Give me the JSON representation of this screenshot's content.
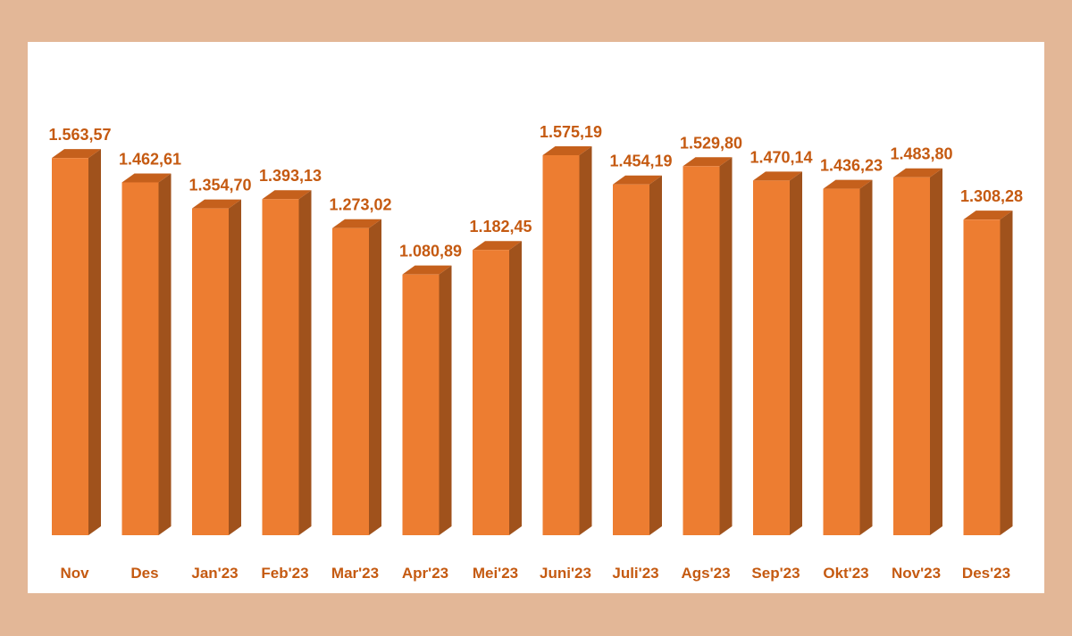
{
  "chart_data": {
    "type": "bar",
    "categories": [
      "Nov",
      "Des",
      "Jan'23",
      "Feb'23",
      "Mar'23",
      "Apr'23",
      "Mei'23",
      "Juni'23",
      "Juli'23",
      "Ags'23",
      "Sep'23",
      "Okt'23",
      "Nov'23",
      "Des'23"
    ],
    "series": [
      {
        "values": [
          1563.57,
          1462.61,
          1354.7,
          1393.13,
          1273.02,
          1080.89,
          1182.45,
          1575.19,
          1454.19,
          1529.8,
          1470.14,
          1436.23,
          1483.8,
          1308.28
        ]
      }
    ],
    "data_labels": [
      "1.563,57",
      "1.462,61",
      "1.354,70",
      "1.393,13",
      "1.273,02",
      "1.080,89",
      "1.182,45",
      "1.575,19",
      "1.454,19",
      "1.529,80",
      "1.470,14",
      "1.436,23",
      "1.483,80",
      "1.308,28"
    ],
    "ylim": [
      0,
      1600
    ],
    "grid": false,
    "legend": "none",
    "style": "3d-column",
    "colors": {
      "bar_front": "#ed7d31",
      "bar_side": "#a0521c",
      "bar_top": "#c5601c",
      "label": "#c55a11",
      "frame": "#e3b797",
      "panel": "#ffffff"
    }
  }
}
